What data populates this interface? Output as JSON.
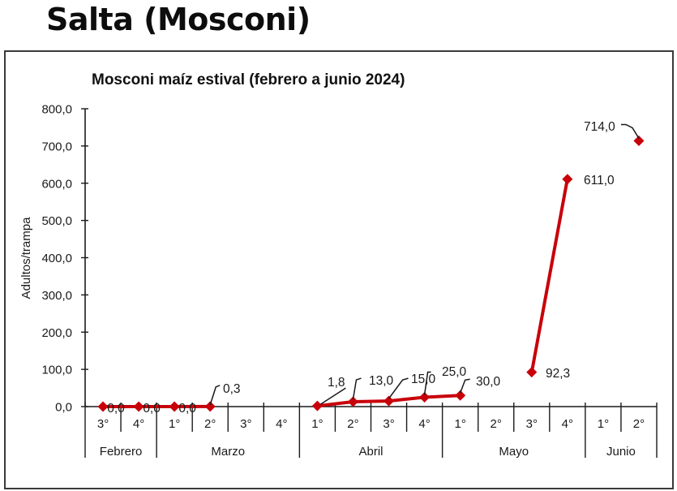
{
  "page": {
    "heading": "Salta (Mosconi)"
  },
  "chart_data": {
    "type": "line",
    "title": "Mosconi maíz estival (febrero a junio 2024)",
    "xlabel": "",
    "ylabel": "Adultos/trampa",
    "ylim": [
      0,
      800
    ],
    "yticks": [
      "0,0",
      "100,0",
      "200,0",
      "300,0",
      "400,0",
      "500,0",
      "600,0",
      "700,0",
      "800,0"
    ],
    "ytick_values": [
      0,
      100,
      200,
      300,
      400,
      500,
      600,
      700,
      800
    ],
    "grid": false,
    "legend": null,
    "color": "#c8000a",
    "months": [
      {
        "name": "Febrero",
        "weeks": [
          "3°",
          "4°"
        ]
      },
      {
        "name": "Marzo",
        "weeks": [
          "1°",
          "2°",
          "3°",
          "4°"
        ]
      },
      {
        "name": "Abril",
        "weeks": [
          "1°",
          "2°",
          "3°",
          "4°"
        ]
      },
      {
        "name": "Mayo",
        "weeks": [
          "1°",
          "2°",
          "3°",
          "4°"
        ]
      },
      {
        "name": "Junio",
        "weeks": [
          "1°",
          "2°"
        ]
      }
    ],
    "categories": [
      "Febrero 3°",
      "Febrero 4°",
      "Marzo 1°",
      "Marzo 2°",
      "Marzo 3°",
      "Marzo 4°",
      "Abril 1°",
      "Abril 2°",
      "Abril 3°",
      "Abril 4°",
      "Mayo 1°",
      "Mayo 2°",
      "Mayo 3°",
      "Mayo 4°",
      "Junio 1°",
      "Junio 2°"
    ],
    "series": [
      {
        "name": "Mosconi maíz estival",
        "values": [
          0.0,
          0.0,
          0.0,
          0.3,
          null,
          null,
          1.8,
          13.0,
          15.0,
          25.0,
          30.0,
          null,
          92.3,
          611.0,
          null,
          714.0
        ],
        "labels": [
          "0,0",
          "0,0",
          "0,0",
          "0,3",
          null,
          null,
          "1,8",
          "13,0",
          "15,0",
          "25,0",
          "30,0",
          null,
          "92,3",
          "611,0",
          null,
          "714,0"
        ]
      }
    ]
  }
}
